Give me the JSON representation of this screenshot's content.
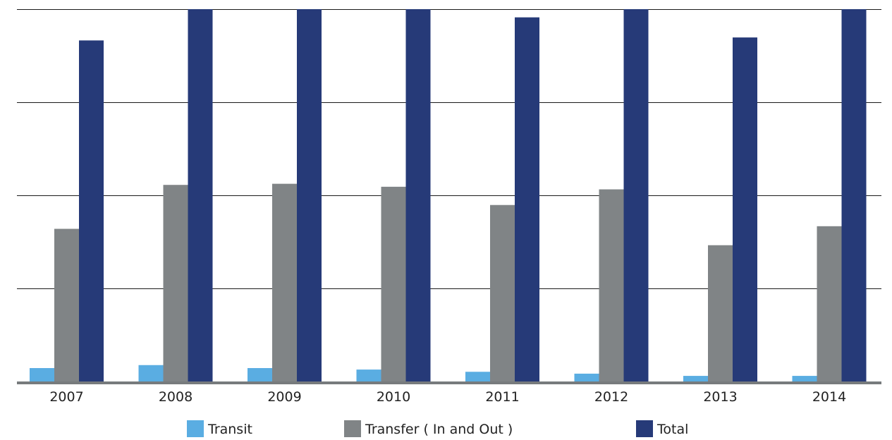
{
  "chart_data": {
    "type": "bar",
    "categories": [
      "2007",
      "2008",
      "2009",
      "2010",
      "2011",
      "2012",
      "2013",
      "2014"
    ],
    "series": [
      {
        "name": "Transit",
        "color": "#5aade2",
        "values": [
          3.6,
          4.4,
          3.6,
          3.2,
          2.6,
          2.1,
          1.5,
          1.5
        ]
      },
      {
        "name": "Transfer ( In and Out )",
        "color": "#808486",
        "values": [
          41,
          52.8,
          53.1,
          52.3,
          47.4,
          51.6,
          36.6,
          41.7
        ]
      },
      {
        "name": "Total",
        "color": "#263a78",
        "values": [
          91.6,
          100,
          100,
          100,
          97.8,
          100,
          92.4,
          100
        ]
      }
    ],
    "ylim": [
      0,
      100
    ],
    "y_gridlines": [
      0,
      25,
      50,
      75,
      100
    ],
    "y_tick_labels_shown": false,
    "grid": true,
    "legend_position": "bottom",
    "title": "",
    "xlabel": "",
    "ylabel": ""
  }
}
